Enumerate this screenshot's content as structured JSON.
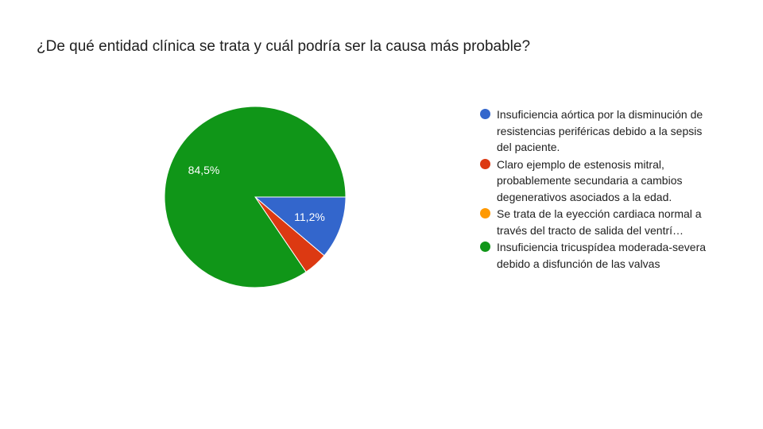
{
  "title": "¿De qué entidad clínica se trata y cuál podría ser la causa más probable?",
  "chart_data": {
    "type": "pie",
    "title": "¿De qué entidad clínica se trata y cuál podría ser la causa más probable?",
    "slices": [
      {
        "label": "Insuficiencia aórtica por la disminución de resistencias periféricas debido a la sepsis del paciente.",
        "value": 11.2,
        "display": "11,2%",
        "color": "#3366cc"
      },
      {
        "label": "Claro ejemplo de estenosis mitral, probablemente secundaria a cambios degenerativos asociados a la edad.",
        "value": 4.3,
        "display": "",
        "color": "#dc3912"
      },
      {
        "label": "Se trata de la eyección cardiaca normal a través del tracto de salida del ventrí…",
        "value": 0,
        "display": "",
        "color": "#ff9900"
      },
      {
        "label": "Insuficiencia tricuspídea moderada-severa debido a disfunción de las valvas",
        "value": 84.5,
        "display": "84,5%",
        "color": "#109618"
      }
    ],
    "legend_position": "right"
  }
}
